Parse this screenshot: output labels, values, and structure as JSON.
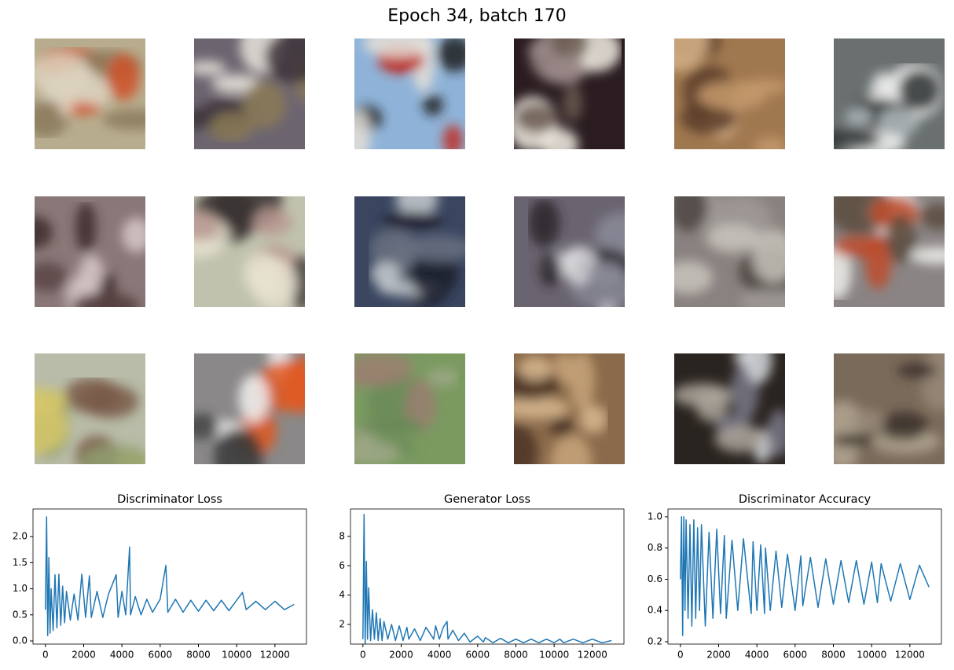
{
  "title": "Epoch 34, batch 170",
  "chart_data": [
    {
      "type": "line",
      "title": "Discriminator Loss",
      "color": "#1f77b4",
      "x": [
        0,
        60,
        120,
        180,
        240,
        300,
        400,
        500,
        600,
        700,
        800,
        900,
        1000,
        1100,
        1300,
        1500,
        1700,
        1900,
        2100,
        2300,
        2400,
        2700,
        3000,
        3300,
        3700,
        3800,
        4000,
        4200,
        4400,
        4450,
        4700,
        5000,
        5300,
        5600,
        6000,
        6300,
        6400,
        6800,
        7200,
        7600,
        8000,
        8400,
        8800,
        9200,
        9600,
        10000,
        10300,
        10500,
        11000,
        11500,
        12000,
        12500,
        13000
      ],
      "values": [
        0.6,
        2.38,
        0.1,
        1.6,
        0.15,
        1.0,
        0.2,
        1.27,
        0.25,
        1.28,
        0.3,
        1.05,
        0.35,
        0.95,
        0.4,
        0.9,
        0.4,
        1.28,
        0.45,
        1.25,
        0.45,
        0.95,
        0.45,
        0.9,
        1.27,
        0.45,
        0.95,
        0.5,
        1.8,
        0.5,
        0.85,
        0.5,
        0.8,
        0.55,
        0.8,
        1.45,
        0.55,
        0.8,
        0.55,
        0.78,
        0.57,
        0.78,
        0.58,
        0.78,
        0.58,
        0.78,
        0.93,
        0.6,
        0.76,
        0.6,
        0.76,
        0.6,
        0.7
      ],
      "xlim": [
        -650,
        13650
      ],
      "ylim": [
        -0.06,
        2.53
      ],
      "xticks": [
        0,
        2000,
        4000,
        6000,
        8000,
        10000,
        12000
      ],
      "yticks": [
        {
          "value": 0,
          "label": "0.0"
        },
        0.5,
        {
          "value": 1,
          "label": "1.0"
        },
        1.5,
        {
          "value": 2,
          "label": "2.0"
        }
      ]
    },
    {
      "type": "line",
      "title": "Generator Loss",
      "color": "#1f77b4",
      "x": [
        0,
        60,
        120,
        180,
        240,
        300,
        400,
        500,
        600,
        700,
        800,
        900,
        1000,
        1100,
        1300,
        1500,
        1700,
        1900,
        2100,
        2300,
        2400,
        2700,
        3000,
        3300,
        3700,
        3800,
        4000,
        4200,
        4400,
        4450,
        4700,
        5000,
        5300,
        5600,
        6000,
        6300,
        6400,
        6800,
        7200,
        7600,
        8000,
        8400,
        8800,
        9200,
        9600,
        10000,
        10300,
        10500,
        11000,
        11500,
        12000,
        12500,
        13000
      ],
      "values": [
        1.0,
        9.5,
        0.6,
        6.3,
        1.0,
        4.5,
        0.9,
        3.0,
        1.0,
        2.8,
        0.9,
        2.4,
        0.9,
        2.2,
        1.0,
        2.0,
        0.9,
        1.9,
        0.9,
        1.8,
        1.0,
        1.7,
        0.9,
        1.8,
        1.0,
        1.9,
        1.0,
        1.8,
        2.2,
        1.0,
        1.6,
        0.9,
        1.4,
        0.8,
        1.2,
        0.8,
        1.1,
        0.75,
        1.05,
        0.75,
        1.0,
        0.75,
        1.0,
        0.75,
        1.0,
        0.75,
        1.0,
        0.75,
        1.0,
        0.75,
        1.0,
        0.75,
        0.9
      ],
      "xlim": [
        -650,
        13650
      ],
      "ylim": [
        0.66,
        9.87
      ],
      "xticks": [
        0,
        2000,
        4000,
        6000,
        8000,
        10000,
        12000
      ],
      "yticks": [
        2,
        4,
        6,
        8
      ]
    },
    {
      "type": "line",
      "title": "Discriminator Accuracy",
      "color": "#1f77b4",
      "x": [
        0,
        60,
        120,
        180,
        240,
        300,
        400,
        500,
        600,
        700,
        800,
        900,
        1000,
        1100,
        1300,
        1500,
        1700,
        1900,
        2100,
        2300,
        2400,
        2700,
        3000,
        3300,
        3700,
        3800,
        4000,
        4200,
        4400,
        4450,
        4700,
        5000,
        5300,
        5600,
        6000,
        6300,
        6400,
        6800,
        7200,
        7600,
        8000,
        8400,
        8800,
        9200,
        9600,
        10000,
        10300,
        10500,
        11000,
        11500,
        12000,
        12500,
        13000
      ],
      "values": [
        0.6,
        1.0,
        0.24,
        1.0,
        0.4,
        0.98,
        0.35,
        0.95,
        0.3,
        0.98,
        0.35,
        0.93,
        0.4,
        0.95,
        0.3,
        0.9,
        0.35,
        0.92,
        0.38,
        0.88,
        0.35,
        0.85,
        0.4,
        0.86,
        0.38,
        0.84,
        0.4,
        0.82,
        0.38,
        0.8,
        0.4,
        0.78,
        0.42,
        0.76,
        0.4,
        0.75,
        0.43,
        0.74,
        0.42,
        0.73,
        0.44,
        0.72,
        0.45,
        0.72,
        0.44,
        0.71,
        0.45,
        0.7,
        0.46,
        0.7,
        0.47,
        0.69,
        0.55
      ],
      "xlim": [
        -650,
        13650
      ],
      "ylim": [
        0.185,
        1.05
      ],
      "xticks": [
        0,
        2000,
        4000,
        6000,
        8000,
        10000,
        12000
      ],
      "yticks": [
        0.2,
        0.4,
        0.6,
        0.8,
        {
          "value": 1,
          "label": "1.0"
        }
      ]
    }
  ]
}
